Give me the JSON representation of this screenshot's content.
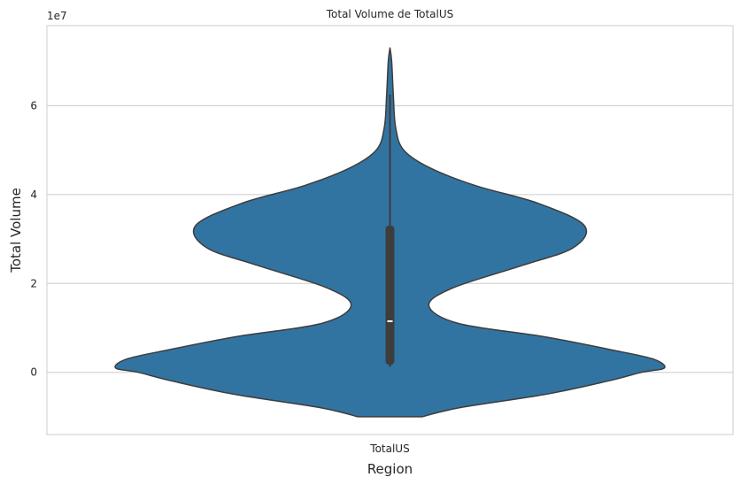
{
  "chart_data": {
    "type": "violin",
    "title": "Total Volume de TotalUS",
    "xlabel": "Region",
    "ylabel": "Total Volume",
    "y_offset_label": "1e7",
    "categories": [
      "TotalUS"
    ],
    "ylim": [
      -1.4,
      7.8
    ],
    "yticks": [
      0,
      2,
      4,
      6
    ],
    "grid": true,
    "colors": {
      "violin": "#3274a1",
      "outline": "#3d3d3d",
      "box": "#3d3d3d",
      "median": "#ffffff",
      "grid": "#cccccc",
      "frame": "#cccccc"
    },
    "violins": [
      {
        "category": "TotalUS",
        "min": 0.12,
        "q1": 0.17,
        "median": 1.15,
        "q3": 3.3,
        "max": 6.25,
        "extent": [
          -1.0,
          7.3
        ],
        "density_profile": [
          {
            "y": -1.0,
            "w": 0.28
          },
          {
            "y": -0.8,
            "w": 0.6
          },
          {
            "y": -0.5,
            "w": 1.35
          },
          {
            "y": -0.2,
            "w": 1.9
          },
          {
            "y": 0.0,
            "w": 2.2
          },
          {
            "y": 0.1,
            "w": 2.4
          },
          {
            "y": 0.3,
            "w": 2.3
          },
          {
            "y": 0.5,
            "w": 1.95
          },
          {
            "y": 0.8,
            "w": 1.35
          },
          {
            "y": 1.1,
            "w": 0.6
          },
          {
            "y": 1.5,
            "w": 0.34
          },
          {
            "y": 1.9,
            "w": 0.55
          },
          {
            "y": 2.4,
            "w": 1.15
          },
          {
            "y": 2.8,
            "w": 1.6
          },
          {
            "y": 3.3,
            "w": 1.7
          },
          {
            "y": 3.8,
            "w": 1.3
          },
          {
            "y": 4.2,
            "w": 0.75
          },
          {
            "y": 4.6,
            "w": 0.35
          },
          {
            "y": 5.0,
            "w": 0.12
          },
          {
            "y": 5.5,
            "w": 0.05
          },
          {
            "y": 6.2,
            "w": 0.03
          },
          {
            "y": 7.0,
            "w": 0.015
          },
          {
            "y": 7.3,
            "w": 0.0
          }
        ]
      }
    ]
  }
}
